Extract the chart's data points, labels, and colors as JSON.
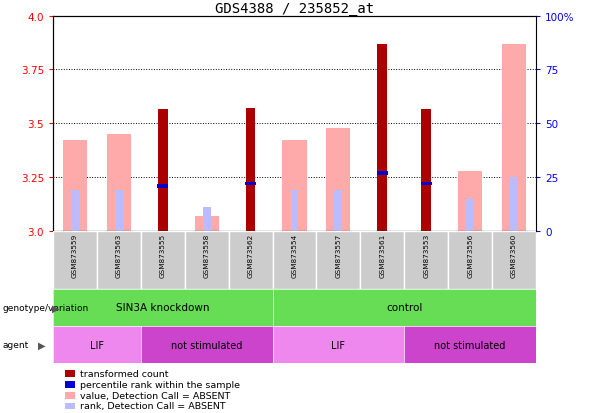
{
  "title": "GDS4388 / 235852_at",
  "samples": [
    "GSM873559",
    "GSM873563",
    "GSM873555",
    "GSM873558",
    "GSM873562",
    "GSM873554",
    "GSM873557",
    "GSM873561",
    "GSM873553",
    "GSM873556",
    "GSM873560"
  ],
  "ylim_left": [
    3.0,
    4.0
  ],
  "ylim_right": [
    0,
    100
  ],
  "yticks_left": [
    3.0,
    3.25,
    3.5,
    3.75,
    4.0
  ],
  "yticks_right": [
    0,
    25,
    50,
    75,
    100
  ],
  "gridlines": [
    3.25,
    3.5,
    3.75
  ],
  "transformed_count": [
    null,
    null,
    3.565,
    null,
    3.57,
    null,
    null,
    3.87,
    3.565,
    null,
    null
  ],
  "percentile_rank": [
    null,
    null,
    3.21,
    null,
    3.22,
    null,
    null,
    3.27,
    3.22,
    null,
    null
  ],
  "value_absent": [
    3.42,
    3.45,
    null,
    null,
    null,
    3.42,
    3.48,
    null,
    null,
    3.28,
    3.87
  ],
  "rank_absent": [
    3.19,
    3.19,
    null,
    null,
    null,
    3.19,
    3.19,
    null,
    null,
    3.15,
    3.25
  ],
  "value_absent2": [
    null,
    null,
    null,
    3.07,
    null,
    null,
    null,
    null,
    null,
    null,
    null
  ],
  "rank_absent2": [
    null,
    null,
    null,
    3.11,
    null,
    null,
    null,
    null,
    null,
    null,
    null
  ],
  "colors": {
    "transformed_count": "#aa0000",
    "percentile_rank": "#0000cc",
    "value_absent": "#ffaaaa",
    "rank_absent": "#bbbbff",
    "background_samples": "#cccccc",
    "genotype_green": "#66dd55",
    "agent_light": "#ee88ee",
    "agent_dark": "#cc44cc"
  },
  "legend_items": [
    {
      "label": "transformed count",
      "color": "#aa0000"
    },
    {
      "label": "percentile rank within the sample",
      "color": "#0000cc"
    },
    {
      "label": "value, Detection Call = ABSENT",
      "color": "#ffaaaa"
    },
    {
      "label": "rank, Detection Call = ABSENT",
      "color": "#bbbbff"
    }
  ],
  "genotype_groups": [
    {
      "label": "SIN3A knockdown",
      "start": 0,
      "end": 4
    },
    {
      "label": "control",
      "start": 5,
      "end": 10
    }
  ],
  "agent_groups": [
    {
      "label": "LIF",
      "start": 0,
      "end": 1,
      "dark": false
    },
    {
      "label": "not stimulated",
      "start": 2,
      "end": 4,
      "dark": true
    },
    {
      "label": "LIF",
      "start": 5,
      "end": 7,
      "dark": false
    },
    {
      "label": "not stimulated",
      "start": 8,
      "end": 10,
      "dark": true
    }
  ]
}
